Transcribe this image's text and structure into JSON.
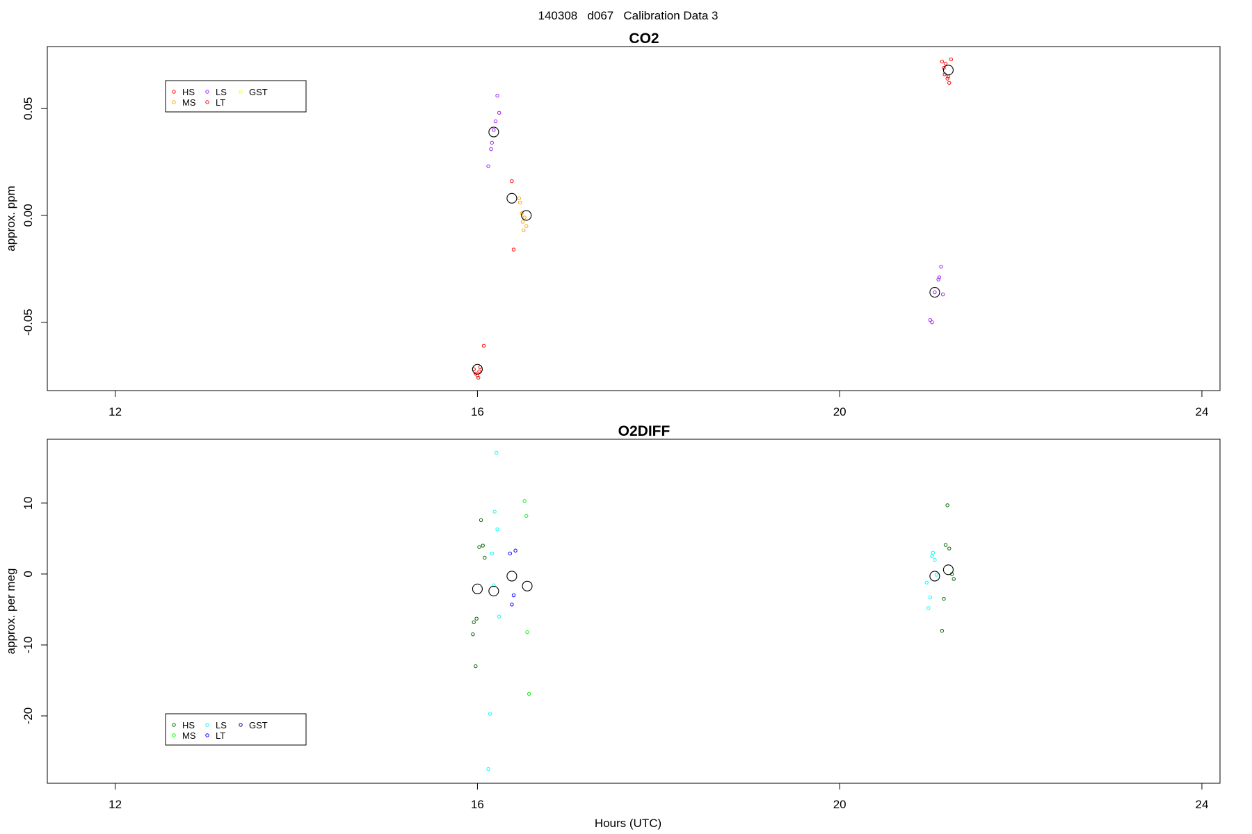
{
  "figure_title": "140308   d067   Calibration Data 3",
  "colors": {
    "HS_co2": "#ff0000",
    "MS_co2": "#ffa500",
    "LS_co2": "#a020f0",
    "LT_co2": "#ff0000",
    "GST_co2": "#ffff00",
    "HS_o2": "#006400",
    "MS_o2": "#00ff00",
    "LS_o2": "#00ffff",
    "LT_o2": "#0000ff",
    "GST_o2": "#00008b",
    "mean_marker": "#000000"
  },
  "chart_data": [
    {
      "type": "scatter",
      "title": "CO2",
      "xlabel": "",
      "ylabel": "approx. ppm",
      "xlim": [
        11.25,
        24.2
      ],
      "ylim": [
        -0.082,
        0.079
      ],
      "xticks": [
        12,
        16,
        20,
        24
      ],
      "yticks": [
        -0.05,
        0.0,
        0.05
      ],
      "ytick_labels": [
        "-0.05",
        "0.00",
        "0.05"
      ],
      "grid": false,
      "legend": {
        "placement": "top-left",
        "entries": [
          {
            "name": "HS",
            "color": "#ff0000"
          },
          {
            "name": "MS",
            "color": "#ffa500"
          },
          {
            "name": "LS",
            "color": "#a020f0"
          },
          {
            "name": "LT",
            "color": "#ff0000"
          },
          {
            "name": "GST",
            "color": "#ffff00"
          }
        ]
      },
      "series": [
        {
          "name": "HS",
          "color": "#ff0000",
          "points": [
            [
              15.96,
              -0.072
            ],
            [
              15.98,
              -0.074
            ],
            [
              16.0,
              -0.075
            ],
            [
              16.01,
              -0.076
            ],
            [
              16.02,
              -0.073
            ],
            [
              16.03,
              -0.071
            ],
            [
              16.07,
              -0.061
            ],
            [
              21.13,
              0.072
            ],
            [
              21.15,
              0.069
            ],
            [
              21.16,
              0.066
            ],
            [
              21.17,
              0.071
            ],
            [
              21.19,
              0.064
            ],
            [
              21.2,
              0.065
            ],
            [
              21.21,
              0.062
            ],
            [
              21.23,
              0.073
            ]
          ]
        },
        {
          "name": "MS",
          "color": "#ffa500",
          "points": [
            [
              16.46,
              0.008
            ],
            [
              16.47,
              0.006
            ],
            [
              16.49,
              0.001
            ],
            [
              16.5,
              -0.003
            ],
            [
              16.51,
              -0.007
            ],
            [
              16.52,
              -0.001
            ],
            [
              16.54,
              -0.005
            ]
          ]
        },
        {
          "name": "LS",
          "color": "#a020f0",
          "points": [
            [
              16.12,
              0.023
            ],
            [
              16.15,
              0.031
            ],
            [
              16.16,
              0.034
            ],
            [
              16.18,
              0.04
            ],
            [
              16.2,
              0.044
            ],
            [
              16.22,
              0.056
            ],
            [
              16.24,
              0.048
            ],
            [
              21.0,
              -0.049
            ],
            [
              21.02,
              -0.05
            ],
            [
              21.05,
              -0.036
            ],
            [
              21.09,
              -0.03
            ],
            [
              21.1,
              -0.029
            ],
            [
              21.12,
              -0.024
            ],
            [
              21.14,
              -0.037
            ]
          ]
        },
        {
          "name": "LT",
          "color": "#ff0000",
          "points": [
            [
              16.38,
              0.016
            ],
            [
              16.4,
              -0.016
            ]
          ]
        },
        {
          "name": "GST",
          "color": "#ffff00",
          "points": []
        }
      ],
      "means": [
        [
          16.0,
          -0.072
        ],
        [
          16.18,
          0.039
        ],
        [
          16.38,
          0.008
        ],
        [
          16.54,
          0.0
        ],
        [
          21.05,
          -0.036
        ],
        [
          21.2,
          0.068
        ]
      ]
    },
    {
      "type": "scatter",
      "title": "O2DIFF",
      "xlabel": "Hours (UTC)",
      "ylabel": "approx. per meg",
      "xlim": [
        11.25,
        24.2
      ],
      "ylim": [
        -29.5,
        19.0
      ],
      "xticks": [
        12,
        16,
        20,
        24
      ],
      "yticks": [
        -20,
        -10,
        0,
        10
      ],
      "ytick_labels": [
        "-20",
        "-10",
        "0",
        "10"
      ],
      "grid": false,
      "legend": {
        "placement": "bottom-left",
        "entries": [
          {
            "name": "HS",
            "color": "#006400"
          },
          {
            "name": "MS",
            "color": "#00ff00"
          },
          {
            "name": "LS",
            "color": "#00ffff"
          },
          {
            "name": "LT",
            "color": "#0000ff"
          },
          {
            "name": "GST",
            "color": "#00008b"
          }
        ]
      },
      "series": [
        {
          "name": "HS",
          "color": "#006400",
          "points": [
            [
              15.95,
              -8.5
            ],
            [
              15.96,
              -6.8
            ],
            [
              15.98,
              -13.0
            ],
            [
              15.99,
              -6.3
            ],
            [
              16.02,
              3.8
            ],
            [
              16.04,
              7.6
            ],
            [
              16.06,
              4.0
            ],
            [
              16.08,
              2.3
            ],
            [
              21.13,
              -8.0
            ],
            [
              21.15,
              -3.5
            ],
            [
              21.17,
              4.1
            ],
            [
              21.19,
              9.7
            ],
            [
              21.21,
              3.6
            ],
            [
              21.24,
              0.0
            ],
            [
              21.26,
              -0.7
            ]
          ]
        },
        {
          "name": "MS",
          "color": "#00ff00",
          "points": [
            [
              16.52,
              10.3
            ],
            [
              16.54,
              8.2
            ],
            [
              16.55,
              -8.2
            ],
            [
              16.57,
              -16.9
            ]
          ]
        },
        {
          "name": "LS",
          "color": "#00ffff",
          "points": [
            [
              16.12,
              -27.5
            ],
            [
              16.14,
              -19.7
            ],
            [
              16.16,
              2.9
            ],
            [
              16.18,
              -1.6
            ],
            [
              16.19,
              8.8
            ],
            [
              16.21,
              17.1
            ],
            [
              16.22,
              6.3
            ],
            [
              16.24,
              -6.0
            ],
            [
              20.96,
              -1.2
            ],
            [
              20.98,
              -4.8
            ],
            [
              21.0,
              -3.3
            ],
            [
              21.02,
              2.5
            ],
            [
              21.03,
              3.0
            ],
            [
              21.05,
              2.0
            ],
            [
              21.07,
              -0.1
            ]
          ]
        },
        {
          "name": "LT",
          "color": "#0000ff",
          "points": [
            [
              16.36,
              2.9
            ],
            [
              16.38,
              -4.3
            ],
            [
              16.4,
              -3.0
            ],
            [
              16.42,
              3.3
            ]
          ]
        },
        {
          "name": "GST",
          "color": "#00008b",
          "points": []
        }
      ],
      "means": [
        [
          16.0,
          -2.1
        ],
        [
          16.18,
          -2.4
        ],
        [
          16.38,
          -0.3
        ],
        [
          16.55,
          -1.7
        ],
        [
          21.05,
          -0.3
        ],
        [
          21.2,
          0.6
        ]
      ]
    }
  ]
}
